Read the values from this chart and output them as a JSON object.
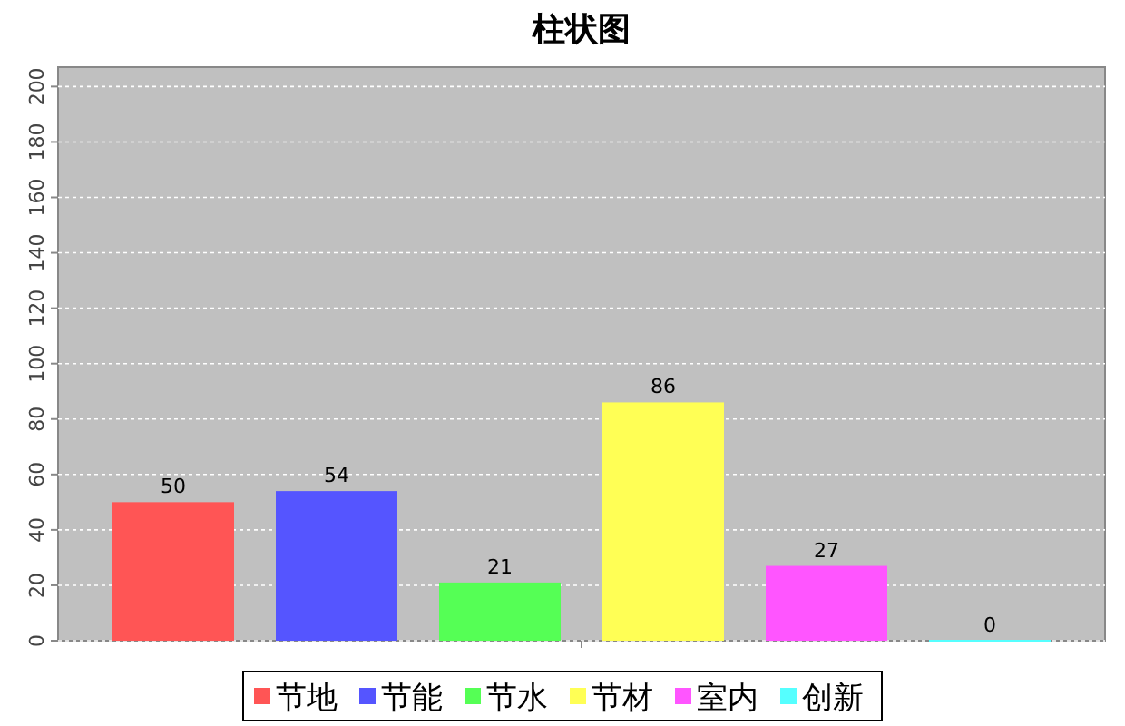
{
  "chart_data": {
    "type": "bar",
    "title": "柱状图",
    "categories": [
      null
    ],
    "series": [
      {
        "name": "节地",
        "color": "#ff5555",
        "values": [
          50
        ]
      },
      {
        "name": "节能",
        "color": "#5555ff",
        "values": [
          54
        ]
      },
      {
        "name": "节水",
        "color": "#55ff55",
        "values": [
          21
        ]
      },
      {
        "name": "节材",
        "color": "#ffff55",
        "values": [
          86
        ]
      },
      {
        "name": "室内",
        "color": "#ff55ff",
        "values": [
          27
        ]
      },
      {
        "name": "创新",
        "color": "#55ffff",
        "values": [
          0
        ]
      }
    ],
    "ylim": [
      0,
      207
    ],
    "yticks": [
      0,
      20,
      40,
      60,
      80,
      100,
      120,
      140,
      160,
      180,
      200
    ],
    "grid": "y",
    "legend": "bottom",
    "data_labels": true
  }
}
